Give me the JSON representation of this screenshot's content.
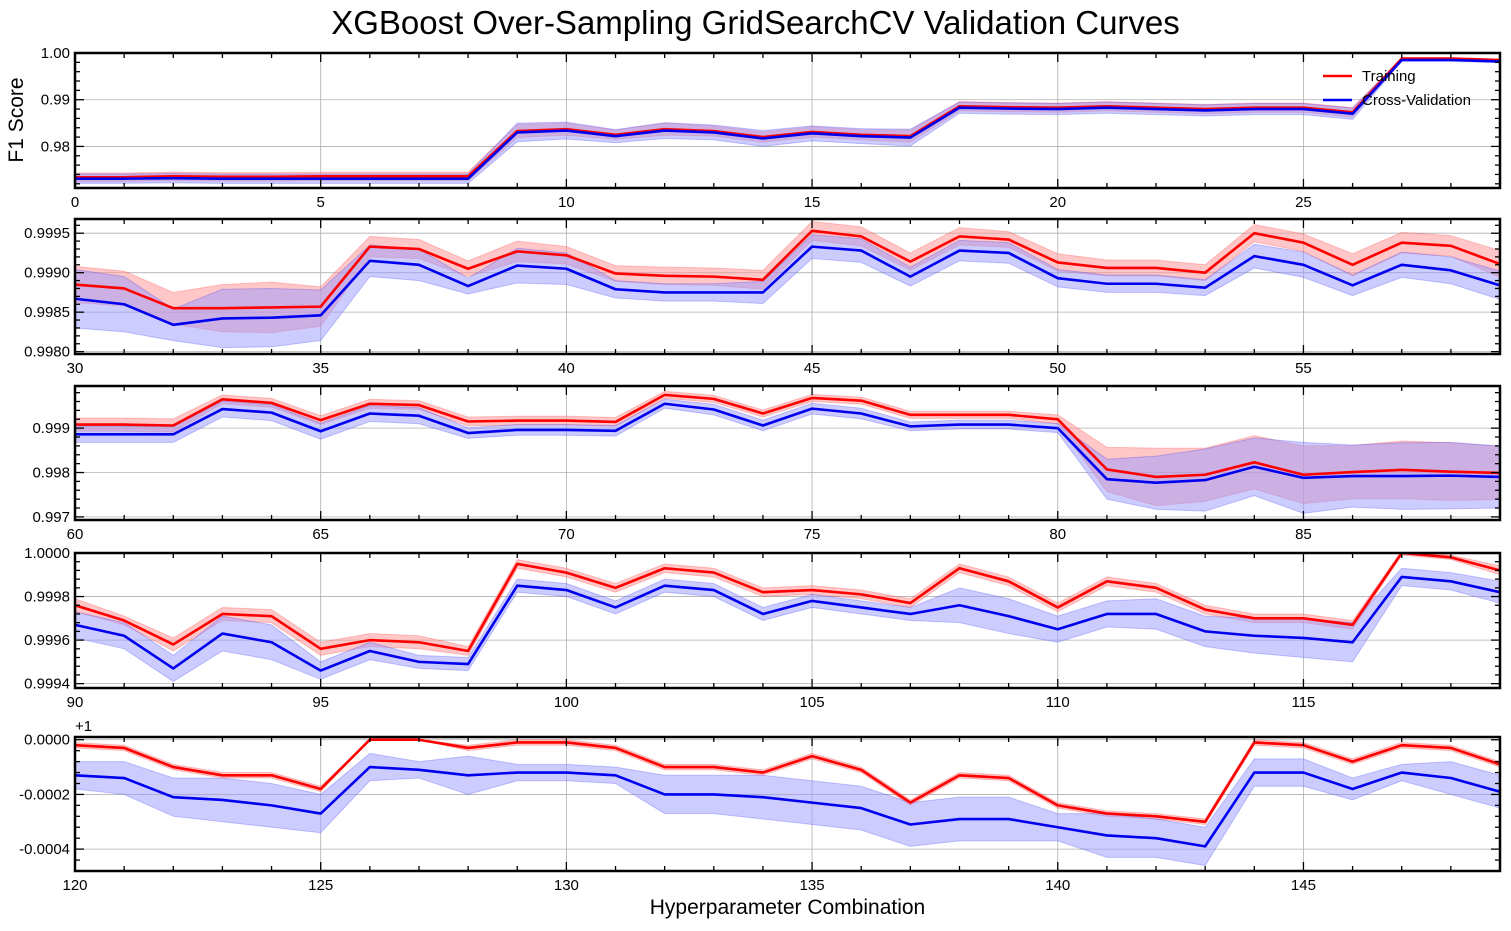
{
  "title": "XGBoost Over-Sampling GridSearchCV Validation Curves",
  "xlabel": "Hyperparameter Combination",
  "ylabel": "F1 Score",
  "colors": {
    "training": "#ff0000",
    "cv": "#0000ee",
    "training_band": "#ff9999",
    "cv_band": "#9999ff",
    "grid": "#b0b0b0"
  },
  "legend": {
    "placement": "top-right",
    "items": [
      {
        "label": "Training",
        "color": "#ff0000"
      },
      {
        "label": "Cross-Validation",
        "color": "#0000ee"
      }
    ]
  },
  "chart_data": [
    {
      "type": "line",
      "x": [
        0,
        1,
        2,
        3,
        4,
        5,
        6,
        7,
        8,
        9,
        10,
        11,
        12,
        13,
        14,
        15,
        16,
        17,
        18,
        19,
        20,
        21,
        22,
        23,
        24,
        25,
        26,
        27,
        28,
        29
      ],
      "xlim": [
        0,
        29
      ],
      "ylim": [
        0.9711,
        1.0
      ],
      "xticks": [
        0,
        5,
        10,
        15,
        20,
        25
      ],
      "yticks": [
        0.98,
        0.99,
        1.0
      ],
      "ytick_labels": [
        "0.98",
        "0.99",
        "1.00"
      ],
      "offset_text": "",
      "series": [
        {
          "name": "Training",
          "values": [
            0.9734,
            0.9734,
            0.9736,
            0.9735,
            0.9735,
            0.9736,
            0.9736,
            0.9736,
            0.9736,
            0.9833,
            0.9837,
            0.9825,
            0.9837,
            0.9833,
            0.982,
            0.9831,
            0.9825,
            0.9822,
            0.9886,
            0.9884,
            0.9883,
            0.9886,
            0.9883,
            0.988,
            0.9883,
            0.9883,
            0.9873,
            0.9988,
            0.9988,
            0.9985
          ],
          "band": [
            0.0009,
            0.0009,
            0.0009,
            0.0009,
            0.0009,
            0.0009,
            0.0009,
            0.0009,
            0.0009,
            0.0014,
            0.0013,
            0.001,
            0.0013,
            0.0011,
            0.0011,
            0.0011,
            0.0011,
            0.0013,
            0.001,
            0.001,
            0.001,
            0.001,
            0.001,
            0.001,
            0.001,
            0.001,
            0.001,
            0.0002,
            0.0002,
            0.0002
          ]
        },
        {
          "name": "Cross-Validation",
          "values": [
            0.9731,
            0.9731,
            0.9732,
            0.9731,
            0.9731,
            0.9731,
            0.9731,
            0.9731,
            0.9731,
            0.983,
            0.9834,
            0.9822,
            0.9834,
            0.983,
            0.9817,
            0.9828,
            0.9822,
            0.9819,
            0.9883,
            0.9881,
            0.988,
            0.9883,
            0.988,
            0.9877,
            0.988,
            0.988,
            0.987,
            0.9985,
            0.9985,
            0.9982
          ],
          "band": [
            0.001,
            0.001,
            0.001,
            0.001,
            0.001,
            0.001,
            0.001,
            0.001,
            0.001,
            0.002,
            0.0018,
            0.0014,
            0.0017,
            0.0016,
            0.0017,
            0.0016,
            0.0016,
            0.0018,
            0.0012,
            0.0012,
            0.0012,
            0.0012,
            0.0012,
            0.0012,
            0.0012,
            0.0012,
            0.0012,
            0.0003,
            0.0003,
            0.0003
          ]
        }
      ]
    },
    {
      "type": "line",
      "x": [
        30,
        31,
        32,
        33,
        34,
        35,
        36,
        37,
        38,
        39,
        40,
        41,
        42,
        43,
        44,
        45,
        46,
        47,
        48,
        49,
        50,
        51,
        52,
        53,
        54,
        55,
        56,
        57,
        58,
        59
      ],
      "xlim": [
        30,
        59
      ],
      "ylim": [
        0.99797,
        0.99968
      ],
      "xticks": [
        30,
        35,
        40,
        45,
        50,
        55
      ],
      "yticks": [
        0.998,
        0.9985,
        0.999,
        0.9995
      ],
      "ytick_labels": [
        "0.9980",
        "0.9985",
        "0.9990",
        "0.9995"
      ],
      "offset_text": "",
      "series": [
        {
          "name": "Training",
          "values": [
            0.99885,
            0.9988,
            0.99855,
            0.99855,
            0.99856,
            0.99857,
            0.99933,
            0.9993,
            0.99905,
            0.99927,
            0.99922,
            0.99899,
            0.99896,
            0.99895,
            0.99891,
            0.99953,
            0.99946,
            0.99914,
            0.99946,
            0.99942,
            0.99913,
            0.99906,
            0.99906,
            0.999,
            0.9995,
            0.99938,
            0.9991,
            0.99938,
            0.99934,
            0.99911
          ],
          "band": [
            0.00023,
            0.00022,
            0.0002,
            0.0003,
            0.00032,
            0.00025,
            0.00013,
            0.00012,
            0.0001,
            0.00013,
            0.00011,
            0.0001,
            0.00011,
            0.00011,
            0.00012,
            0.00012,
            0.00012,
            0.00011,
            0.00011,
            0.0001,
            0.00011,
            0.0001,
            0.0001,
            0.0001,
            0.00011,
            0.00011,
            0.00014,
            0.00013,
            0.00013,
            0.00017
          ]
        },
        {
          "name": "Cross-Validation",
          "values": [
            0.99867,
            0.9986,
            0.99834,
            0.99842,
            0.99843,
            0.99846,
            0.99915,
            0.9991,
            0.99883,
            0.99909,
            0.99905,
            0.99879,
            0.99875,
            0.99875,
            0.99875,
            0.99933,
            0.99928,
            0.99895,
            0.99928,
            0.99925,
            0.99893,
            0.99886,
            0.99886,
            0.99881,
            0.99921,
            0.9991,
            0.99884,
            0.9991,
            0.99903,
            0.99884
          ],
          "band": [
            0.00037,
            0.00035,
            0.0002,
            0.00037,
            0.00037,
            0.00032,
            0.0002,
            0.0002,
            0.0001,
            0.00022,
            0.0002,
            0.00011,
            0.00011,
            0.00011,
            0.00014,
            0.00015,
            0.00015,
            0.00012,
            0.00013,
            0.00013,
            0.00011,
            0.00011,
            0.00011,
            0.0001,
            0.00015,
            0.00016,
            0.00013,
            0.00016,
            0.00017,
            0.00018
          ]
        }
      ]
    },
    {
      "type": "line",
      "x": [
        60,
        61,
        62,
        63,
        64,
        65,
        66,
        67,
        68,
        69,
        70,
        71,
        72,
        73,
        74,
        75,
        76,
        77,
        78,
        79,
        80,
        81,
        82,
        83,
        84,
        85,
        86,
        87,
        88,
        89
      ],
      "xlim": [
        60,
        89
      ],
      "ylim": [
        0.99693,
        0.99995
      ],
      "xticks": [
        60,
        65,
        70,
        75,
        80,
        85
      ],
      "yticks": [
        0.997,
        0.998,
        0.999
      ],
      "ytick_labels": [
        "0.997",
        "0.998",
        "0.999"
      ],
      "offset_text": "",
      "series": [
        {
          "name": "Training",
          "values": [
            0.99908,
            0.99908,
            0.99906,
            0.99965,
            0.99957,
            0.99918,
            0.99955,
            0.99952,
            0.99915,
            0.99917,
            0.99917,
            0.99914,
            0.99975,
            0.99966,
            0.99933,
            0.99968,
            0.99962,
            0.9993,
            0.9993,
            0.9993,
            0.9992,
            0.99807,
            0.9979,
            0.99795,
            0.99823,
            0.99795,
            0.99801,
            0.99806,
            0.99802,
            0.99799
          ],
          "band": [
            0.00015,
            0.00015,
            0.00015,
            0.0001,
            0.0001,
            0.0001,
            0.0001,
            0.0001,
            0.0001,
            0.0001,
            0.0001,
            0.0001,
            8e-05,
            8e-05,
            8e-05,
            8e-05,
            8e-05,
            8e-05,
            8e-05,
            8e-05,
            0.0001,
            0.0005,
            0.00065,
            0.0006,
            0.0006,
            0.00065,
            0.0006,
            0.00065,
            0.00065,
            0.0006
          ]
        },
        {
          "name": "Cross-Validation",
          "values": [
            0.99886,
            0.99886,
            0.99886,
            0.99943,
            0.99935,
            0.99893,
            0.99933,
            0.99928,
            0.99889,
            0.99896,
            0.99896,
            0.99894,
            0.99955,
            0.99942,
            0.99906,
            0.99944,
            0.99933,
            0.99904,
            0.99908,
            0.99908,
            0.999,
            0.99785,
            0.99777,
            0.99783,
            0.99813,
            0.99788,
            0.99792,
            0.99792,
            0.99793,
            0.9979
          ],
          "band": [
            0.00018,
            0.00018,
            0.00018,
            0.00018,
            0.00018,
            0.00018,
            0.00018,
            0.00018,
            0.00012,
            0.00012,
            0.00012,
            0.00012,
            0.0001,
            0.00012,
            0.00012,
            0.00012,
            0.00012,
            0.0001,
            0.0001,
            0.0001,
            0.0001,
            0.00045,
            0.0006,
            0.0007,
            0.00065,
            0.0008,
            0.0007,
            0.00075,
            0.00075,
            0.0007
          ]
        }
      ]
    },
    {
      "type": "line",
      "x": [
        90,
        91,
        92,
        93,
        94,
        95,
        96,
        97,
        98,
        99,
        100,
        101,
        102,
        103,
        104,
        105,
        106,
        107,
        108,
        109,
        110,
        111,
        112,
        113,
        114,
        115,
        116,
        117,
        118,
        119
      ],
      "xlim": [
        90,
        119
      ],
      "ylim": [
        0.99938,
        1.0
      ],
      "xticks": [
        90,
        95,
        100,
        105,
        110,
        115
      ],
      "yticks": [
        0.9994,
        0.9996,
        0.9998,
        1.0
      ],
      "ytick_labels": [
        "0.9994",
        "0.9996",
        "0.9998",
        "1.0000"
      ],
      "offset_text": "",
      "series": [
        {
          "name": "Training",
          "values": [
            0.99976,
            0.99969,
            0.99958,
            0.99972,
            0.99971,
            0.99956,
            0.9996,
            0.99959,
            0.99955,
            0.99995,
            0.99991,
            0.99984,
            0.99993,
            0.99991,
            0.99982,
            0.99983,
            0.99981,
            0.99977,
            0.99993,
            0.99987,
            0.99975,
            0.99987,
            0.99984,
            0.99974,
            0.9997,
            0.9997,
            0.99967,
            1.0,
            0.99998,
            0.99992
          ],
          "band": [
            3e-05,
            2e-05,
            3e-05,
            3e-05,
            3e-05,
            3e-05,
            3e-05,
            3e-05,
            2e-05,
            2e-05,
            2e-05,
            2e-05,
            2e-05,
            2e-05,
            2e-05,
            2e-05,
            2e-05,
            2e-05,
            2e-05,
            2e-05,
            2e-05,
            2e-05,
            2e-05,
            2e-05,
            2e-05,
            2e-05,
            2e-05,
            1e-05,
            1e-05,
            2e-05
          ]
        },
        {
          "name": "Cross-Validation",
          "values": [
            0.99967,
            0.99962,
            0.99947,
            0.99963,
            0.99959,
            0.99946,
            0.99955,
            0.9995,
            0.99949,
            0.99985,
            0.99983,
            0.99975,
            0.99985,
            0.99983,
            0.99972,
            0.99978,
            0.99975,
            0.99972,
            0.99976,
            0.99971,
            0.99965,
            0.99972,
            0.99972,
            0.99964,
            0.99962,
            0.99961,
            0.99959,
            0.99989,
            0.99987,
            0.99982
          ],
          "band": [
            6e-05,
            6e-05,
            6e-05,
            8e-05,
            8e-05,
            4e-05,
            4e-05,
            3e-05,
            3e-05,
            3e-05,
            3e-05,
            3e-05,
            3e-05,
            3e-05,
            3e-05,
            3e-05,
            3e-05,
            3e-05,
            8e-05,
            8e-05,
            6e-05,
            6e-05,
            7e-05,
            7e-05,
            8e-05,
            9e-05,
            9e-05,
            4e-05,
            4e-05,
            5e-05
          ]
        }
      ]
    },
    {
      "type": "line",
      "x": [
        120,
        121,
        122,
        123,
        124,
        125,
        126,
        127,
        128,
        129,
        130,
        131,
        132,
        133,
        134,
        135,
        136,
        137,
        138,
        139,
        140,
        141,
        142,
        143,
        144,
        145,
        146,
        147,
        148,
        149
      ],
      "xlim": [
        120,
        149
      ],
      "ylim": [
        -0.00048,
        1e-05
      ],
      "xticks": [
        120,
        125,
        130,
        135,
        140,
        145
      ],
      "yticks": [
        -0.0004,
        -0.0002,
        0.0
      ],
      "ytick_labels": [
        "-0.0004",
        "-0.0002",
        "0.0000"
      ],
      "offset_text": "+1",
      "series": [
        {
          "name": "Training",
          "values": [
            -2e-05,
            -3e-05,
            -0.0001,
            -0.00013,
            -0.00013,
            -0.00018,
            0.0,
            0.0,
            -3e-05,
            -1e-05,
            -1e-05,
            -3e-05,
            -0.0001,
            -0.0001,
            -0.00012,
            -6e-05,
            -0.00011,
            -0.00023,
            -0.00013,
            -0.00014,
            -0.00024,
            -0.00027,
            -0.00028,
            -0.0003,
            -1e-05,
            -2e-05,
            -8e-05,
            -2e-05,
            -3e-05,
            -9e-05
          ],
          "band": [
            1e-05,
            1e-05,
            1e-05,
            1e-05,
            1e-05,
            1e-05,
            0.0,
            0.0,
            1e-05,
            1e-05,
            1e-05,
            1e-05,
            1e-05,
            1e-05,
            1e-05,
            1e-05,
            1e-05,
            1e-05,
            1e-05,
            1e-05,
            1e-05,
            1e-05,
            1e-05,
            1e-05,
            1e-05,
            1e-05,
            1e-05,
            1e-05,
            1e-05,
            1e-05
          ]
        },
        {
          "name": "Cross-Validation",
          "values": [
            -0.00013,
            -0.00014,
            -0.00021,
            -0.00022,
            -0.00024,
            -0.00027,
            -0.0001,
            -0.00011,
            -0.00013,
            -0.00012,
            -0.00012,
            -0.00013,
            -0.0002,
            -0.0002,
            -0.00021,
            -0.00023,
            -0.00025,
            -0.00031,
            -0.00029,
            -0.00029,
            -0.00032,
            -0.00035,
            -0.00036,
            -0.00039,
            -0.00012,
            -0.00012,
            -0.00018,
            -0.00012,
            -0.00014,
            -0.00019
          ],
          "band": [
            5e-05,
            6e-05,
            7e-05,
            8e-05,
            8e-05,
            7e-05,
            5e-05,
            3e-05,
            7e-05,
            3e-05,
            3e-05,
            3e-05,
            7e-05,
            7e-05,
            8e-05,
            8e-05,
            8e-05,
            8e-05,
            8e-05,
            8e-05,
            5e-05,
            8e-05,
            7e-05,
            7e-05,
            5e-05,
            5e-05,
            4e-05,
            3e-05,
            6e-05,
            6e-05
          ]
        }
      ]
    }
  ]
}
